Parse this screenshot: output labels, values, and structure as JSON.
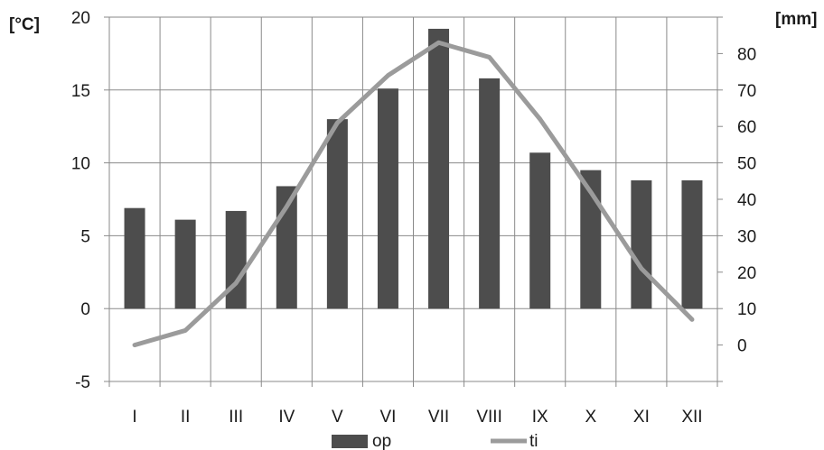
{
  "chart_data": {
    "type": "bar",
    "categories": [
      "I",
      "II",
      "III",
      "IV",
      "V",
      "VI",
      "VII",
      "VIII",
      "IX",
      "X",
      "XI",
      "XII"
    ],
    "series": [
      {
        "name": "op",
        "type": "bar",
        "axis": "left",
        "color": "#4d4d4d",
        "values": [
          6.9,
          6.1,
          6.7,
          8.4,
          13.0,
          15.1,
          19.2,
          15.8,
          10.7,
          9.5,
          8.8,
          8.8
        ]
      },
      {
        "name": "ti",
        "type": "line",
        "axis": "right",
        "color": "#9b9b9b",
        "values": [
          -10,
          -6,
          7,
          28,
          51,
          64,
          73,
          69,
          52,
          32,
          11,
          -3
        ]
      }
    ],
    "y_left": {
      "label": "[°C]",
      "ticks": [
        "-5",
        "0",
        "5",
        "10",
        "15",
        "20"
      ],
      "ylim": [
        -5,
        20
      ]
    },
    "y_right": {
      "label": "[mm]",
      "ticks": [
        "",
        "0",
        "10",
        "20",
        "30",
        "40",
        "50",
        "60",
        "70",
        "80"
      ],
      "ylim": [
        -20,
        80
      ]
    },
    "grid": true,
    "legend": "bottom"
  }
}
